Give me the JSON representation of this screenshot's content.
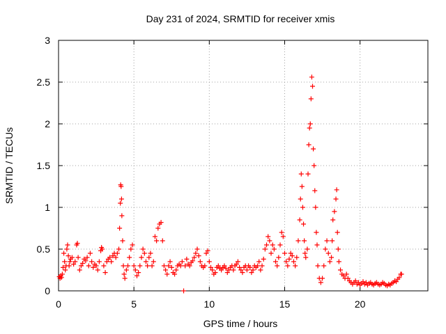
{
  "chart_data": {
    "type": "scatter",
    "title": "Day 231 of 2024, SRMTID for receiver xmis",
    "xlabel": "GPS time / hours",
    "ylabel": "SRMTID / TECUs",
    "xlim": [
      0,
      24.5
    ],
    "ylim": [
      0,
      3
    ],
    "xticks": [
      0,
      5,
      10,
      15,
      20
    ],
    "xtick_labels": [
      "0",
      "5",
      "10",
      "15",
      "20"
    ],
    "yticks": [
      0,
      0.5,
      1,
      1.5,
      2,
      2.5,
      3
    ],
    "ytick_labels": [
      "0",
      "0.5",
      "1",
      "1.5",
      "2",
      "2.5",
      "3"
    ],
    "grid": true,
    "marker": "+",
    "series": [
      {
        "name": "SRMTID",
        "color": "#ff0000",
        "points": [
          [
            0.05,
            0.17
          ],
          [
            0.1,
            0.15
          ],
          [
            0.15,
            0.18
          ],
          [
            0.2,
            0.16
          ],
          [
            0.25,
            0.2
          ],
          [
            0.3,
            0.28
          ],
          [
            0.35,
            0.45
          ],
          [
            0.4,
            0.35
          ],
          [
            0.45,
            0.25
          ],
          [
            0.5,
            0.3
          ],
          [
            0.55,
            0.5
          ],
          [
            0.6,
            0.55
          ],
          [
            0.65,
            0.42
          ],
          [
            0.7,
            0.3
          ],
          [
            0.75,
            0.35
          ],
          [
            0.8,
            0.38
          ],
          [
            0.9,
            0.4
          ],
          [
            1.0,
            0.32
          ],
          [
            1.1,
            0.35
          ],
          [
            1.2,
            0.55
          ],
          [
            1.25,
            0.57
          ],
          [
            1.3,
            0.4
          ],
          [
            1.4,
            0.25
          ],
          [
            1.5,
            0.3
          ],
          [
            1.6,
            0.33
          ],
          [
            1.7,
            0.38
          ],
          [
            1.8,
            0.36
          ],
          [
            1.9,
            0.4
          ],
          [
            2.0,
            0.3
          ],
          [
            2.1,
            0.45
          ],
          [
            2.2,
            0.35
          ],
          [
            2.3,
            0.28
          ],
          [
            2.4,
            0.32
          ],
          [
            2.5,
            0.3
          ],
          [
            2.6,
            0.25
          ],
          [
            2.7,
            0.35
          ],
          [
            2.8,
            0.48
          ],
          [
            2.85,
            0.52
          ],
          [
            2.9,
            0.5
          ],
          [
            3.0,
            0.3
          ],
          [
            3.1,
            0.22
          ],
          [
            3.2,
            0.35
          ],
          [
            3.3,
            0.38
          ],
          [
            3.4,
            0.4
          ],
          [
            3.5,
            0.35
          ],
          [
            3.6,
            0.42
          ],
          [
            3.7,
            0.45
          ],
          [
            3.8,
            0.4
          ],
          [
            3.9,
            0.45
          ],
          [
            4.0,
            0.5
          ],
          [
            4.05,
            0.75
          ],
          [
            4.1,
            1.05
          ],
          [
            4.12,
            1.27
          ],
          [
            4.15,
            1.25
          ],
          [
            4.18,
            1.1
          ],
          [
            4.2,
            0.9
          ],
          [
            4.25,
            0.6
          ],
          [
            4.3,
            0.3
          ],
          [
            4.35,
            0.2
          ],
          [
            4.4,
            0.15
          ],
          [
            4.5,
            0.25
          ],
          [
            4.6,
            0.3
          ],
          [
            4.7,
            0.4
          ],
          [
            4.8,
            0.5
          ],
          [
            4.9,
            0.55
          ],
          [
            5.0,
            0.3
          ],
          [
            5.1,
            0.25
          ],
          [
            5.2,
            0.18
          ],
          [
            5.3,
            0.22
          ],
          [
            5.4,
            0.3
          ],
          [
            5.5,
            0.4
          ],
          [
            5.6,
            0.5
          ],
          [
            5.7,
            0.45
          ],
          [
            5.8,
            0.35
          ],
          [
            5.9,
            0.3
          ],
          [
            6.0,
            0.4
          ],
          [
            6.1,
            0.45
          ],
          [
            6.2,
            0.3
          ],
          [
            6.3,
            0.35
          ],
          [
            6.4,
            0.65
          ],
          [
            6.5,
            0.6
          ],
          [
            6.6,
            0.75
          ],
          [
            6.7,
            0.8
          ],
          [
            6.8,
            0.82
          ],
          [
            6.9,
            0.6
          ],
          [
            7.0,
            0.3
          ],
          [
            7.1,
            0.25
          ],
          [
            7.2,
            0.2
          ],
          [
            7.3,
            0.3
          ],
          [
            7.4,
            0.35
          ],
          [
            7.5,
            0.28
          ],
          [
            7.6,
            0.22
          ],
          [
            7.7,
            0.2
          ],
          [
            7.8,
            0.25
          ],
          [
            7.9,
            0.3
          ],
          [
            8.0,
            0.32
          ],
          [
            8.1,
            0.3
          ],
          [
            8.2,
            0.35
          ],
          [
            8.3,
            0.0
          ],
          [
            8.4,
            0.3
          ],
          [
            8.5,
            0.38
          ],
          [
            8.6,
            0.32
          ],
          [
            8.7,
            0.3
          ],
          [
            8.8,
            0.34
          ],
          [
            8.9,
            0.36
          ],
          [
            9.0,
            0.4
          ],
          [
            9.1,
            0.45
          ],
          [
            9.2,
            0.5
          ],
          [
            9.3,
            0.42
          ],
          [
            9.4,
            0.35
          ],
          [
            9.5,
            0.3
          ],
          [
            9.6,
            0.28
          ],
          [
            9.7,
            0.3
          ],
          [
            9.8,
            0.45
          ],
          [
            9.9,
            0.48
          ],
          [
            10.0,
            0.35
          ],
          [
            10.1,
            0.28
          ],
          [
            10.2,
            0.25
          ],
          [
            10.3,
            0.2
          ],
          [
            10.4,
            0.22
          ],
          [
            10.5,
            0.28
          ],
          [
            10.6,
            0.3
          ],
          [
            10.7,
            0.27
          ],
          [
            10.8,
            0.25
          ],
          [
            10.9,
            0.28
          ],
          [
            11.0,
            0.3
          ],
          [
            11.1,
            0.27
          ],
          [
            11.2,
            0.22
          ],
          [
            11.3,
            0.25
          ],
          [
            11.4,
            0.28
          ],
          [
            11.5,
            0.3
          ],
          [
            11.6,
            0.25
          ],
          [
            11.7,
            0.3
          ],
          [
            11.8,
            0.32
          ],
          [
            11.9,
            0.35
          ],
          [
            12.0,
            0.28
          ],
          [
            12.1,
            0.25
          ],
          [
            12.2,
            0.22
          ],
          [
            12.3,
            0.28
          ],
          [
            12.4,
            0.3
          ],
          [
            12.5,
            0.25
          ],
          [
            12.6,
            0.3
          ],
          [
            12.7,
            0.28
          ],
          [
            12.8,
            0.22
          ],
          [
            12.9,
            0.25
          ],
          [
            13.0,
            0.3
          ],
          [
            13.1,
            0.28
          ],
          [
            13.2,
            0.3
          ],
          [
            13.3,
            0.35
          ],
          [
            13.4,
            0.25
          ],
          [
            13.5,
            0.3
          ],
          [
            13.6,
            0.38
          ],
          [
            13.7,
            0.5
          ],
          [
            13.8,
            0.55
          ],
          [
            13.9,
            0.65
          ],
          [
            14.0,
            0.6
          ],
          [
            14.1,
            0.45
          ],
          [
            14.2,
            0.55
          ],
          [
            14.3,
            0.5
          ],
          [
            14.4,
            0.35
          ],
          [
            14.5,
            0.3
          ],
          [
            14.6,
            0.4
          ],
          [
            14.7,
            0.55
          ],
          [
            14.8,
            0.7
          ],
          [
            14.9,
            0.65
          ],
          [
            15.0,
            0.45
          ],
          [
            15.1,
            0.35
          ],
          [
            15.2,
            0.3
          ],
          [
            15.3,
            0.38
          ],
          [
            15.4,
            0.45
          ],
          [
            15.5,
            0.42
          ],
          [
            15.6,
            0.35
          ],
          [
            15.7,
            0.3
          ],
          [
            15.8,
            0.4
          ],
          [
            15.9,
            0.6
          ],
          [
            16.0,
            0.85
          ],
          [
            16.05,
            1.1
          ],
          [
            16.1,
            1.4
          ],
          [
            16.15,
            1.25
          ],
          [
            16.2,
            1.0
          ],
          [
            16.25,
            0.8
          ],
          [
            16.3,
            0.6
          ],
          [
            16.35,
            0.45
          ],
          [
            16.4,
            0.4
          ],
          [
            16.5,
            0.5
          ],
          [
            16.55,
            1.4
          ],
          [
            16.6,
            1.75
          ],
          [
            16.65,
            1.95
          ],
          [
            16.7,
            2.0
          ],
          [
            16.75,
            2.3
          ],
          [
            16.8,
            2.56
          ],
          [
            16.85,
            2.45
          ],
          [
            16.9,
            1.7
          ],
          [
            16.95,
            1.5
          ],
          [
            17.0,
            1.2
          ],
          [
            17.05,
            1.0
          ],
          [
            17.1,
            0.7
          ],
          [
            17.15,
            0.55
          ],
          [
            17.2,
            0.3
          ],
          [
            17.3,
            0.15
          ],
          [
            17.4,
            0.1
          ],
          [
            17.5,
            0.15
          ],
          [
            17.6,
            0.3
          ],
          [
            17.7,
            0.5
          ],
          [
            17.8,
            0.6
          ],
          [
            17.9,
            0.45
          ],
          [
            18.0,
            0.35
          ],
          [
            18.1,
            0.4
          ],
          [
            18.15,
            0.6
          ],
          [
            18.2,
            0.85
          ],
          [
            18.3,
            0.95
          ],
          [
            18.4,
            1.1
          ],
          [
            18.45,
            1.21
          ],
          [
            18.5,
            0.7
          ],
          [
            18.55,
            0.5
          ],
          [
            18.6,
            0.35
          ],
          [
            18.7,
            0.25
          ],
          [
            18.8,
            0.2
          ],
          [
            18.9,
            0.18
          ],
          [
            19.0,
            0.15
          ],
          [
            19.1,
            0.2
          ],
          [
            19.2,
            0.15
          ],
          [
            19.3,
            0.12
          ],
          [
            19.4,
            0.1
          ],
          [
            19.5,
            0.08
          ],
          [
            19.6,
            0.1
          ],
          [
            19.7,
            0.12
          ],
          [
            19.8,
            0.08
          ],
          [
            19.9,
            0.1
          ],
          [
            20.0,
            0.07
          ],
          [
            20.1,
            0.09
          ],
          [
            20.2,
            0.11
          ],
          [
            20.3,
            0.08
          ],
          [
            20.4,
            0.1
          ],
          [
            20.5,
            0.07
          ],
          [
            20.6,
            0.09
          ],
          [
            20.7,
            0.1
          ],
          [
            20.8,
            0.08
          ],
          [
            20.9,
            0.07
          ],
          [
            21.0,
            0.09
          ],
          [
            21.1,
            0.1
          ],
          [
            21.2,
            0.08
          ],
          [
            21.3,
            0.07
          ],
          [
            21.4,
            0.08
          ],
          [
            21.5,
            0.1
          ],
          [
            21.6,
            0.09
          ],
          [
            21.7,
            0.07
          ],
          [
            21.8,
            0.06
          ],
          [
            21.9,
            0.08
          ],
          [
            22.0,
            0.07
          ],
          [
            22.1,
            0.09
          ],
          [
            22.2,
            0.1
          ],
          [
            22.3,
            0.12
          ],
          [
            22.4,
            0.11
          ],
          [
            22.5,
            0.14
          ],
          [
            22.6,
            0.16
          ],
          [
            22.7,
            0.2
          ],
          [
            22.75,
            0.2
          ]
        ]
      }
    ]
  }
}
